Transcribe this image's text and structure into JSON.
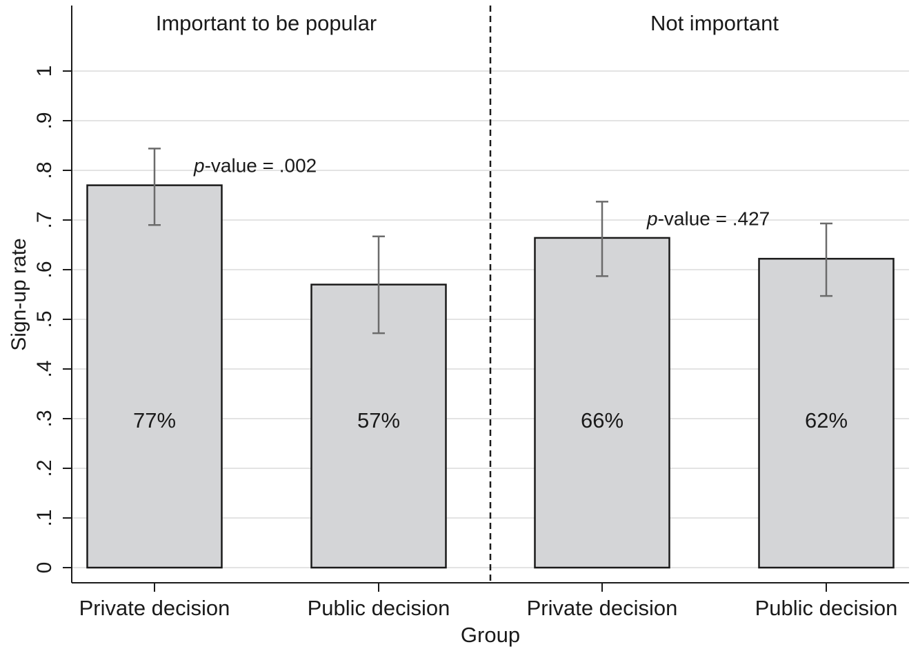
{
  "chart_data": {
    "type": "bar",
    "xlabel": "Group",
    "ylabel": "Sign-up rate",
    "ylim": [
      0,
      1
    ],
    "yticks": [
      0,
      0.1,
      0.2,
      0.3,
      0.4,
      0.5,
      0.6,
      0.7,
      0.8,
      0.9,
      1
    ],
    "ytick_labels": [
      "0",
      ".1",
      ".2",
      ".3",
      ".4",
      ".5",
      ".6",
      ".7",
      ".8",
      ".9",
      "1"
    ],
    "grid": true,
    "panels": [
      {
        "title": "Important to be popular",
        "annotation_prefix": "p",
        "annotation_suffix": "-value = .002",
        "categories": [
          "Private decision",
          "Public decision"
        ],
        "values": [
          0.77,
          0.57
        ],
        "ci_low": [
          0.69,
          0.472
        ],
        "ci_high": [
          0.844,
          0.667
        ],
        "bar_labels": [
          "77%",
          "57%"
        ]
      },
      {
        "title": "Not important",
        "annotation_prefix": "p",
        "annotation_suffix": "-value = .427",
        "categories": [
          "Private decision",
          "Public decision"
        ],
        "values": [
          0.664,
          0.622
        ],
        "ci_low": [
          0.587,
          0.547
        ],
        "ci_high": [
          0.737,
          0.693
        ],
        "bar_labels": [
          "66%",
          "62%"
        ]
      }
    ],
    "colors": {
      "bar_fill": "#d4d5d7",
      "bar_stroke": "#1a1a1a",
      "error_bar": "#6b6b6b",
      "grid": "#e3e3e3",
      "axis": "#1a1a1a"
    }
  }
}
